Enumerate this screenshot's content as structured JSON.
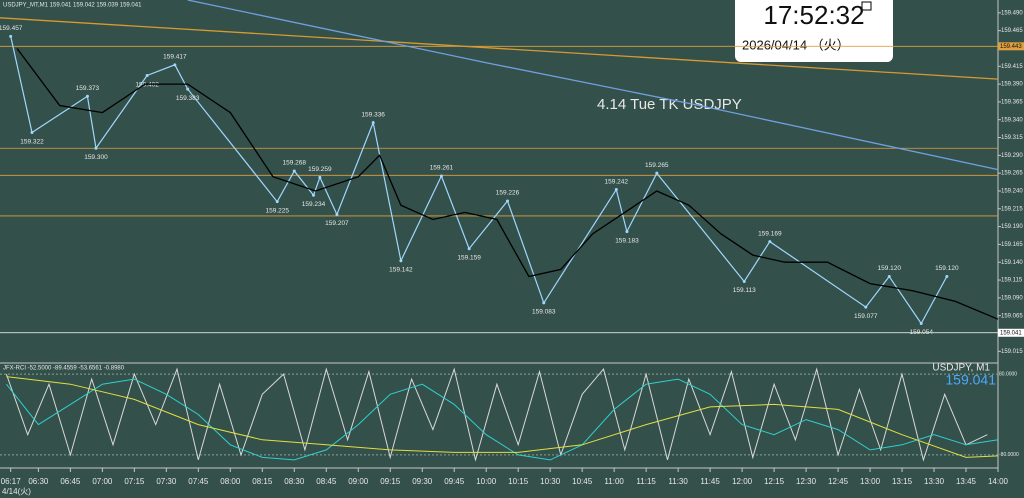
{
  "chart_data": {
    "type": "line",
    "header": "USDJPY_MT,M1  159.041 159.042 159.039 159.041",
    "annotation": "4.14 Tue TK USDJPY",
    "clock": {
      "time": "17:52:32",
      "date": "2026/04/14 （火）"
    },
    "date_label": "4/14(火)",
    "xlim": [
      372,
      840
    ],
    "xticks": [
      {
        "value": 377,
        "label": "06:17"
      },
      {
        "value": 390,
        "label": "06:30"
      },
      {
        "value": 405,
        "label": "06:45"
      },
      {
        "value": 420,
        "label": "07:00"
      },
      {
        "value": 435,
        "label": "07:15"
      },
      {
        "value": 450,
        "label": "07:30"
      },
      {
        "value": 465,
        "label": "07:45"
      },
      {
        "value": 480,
        "label": "08:00"
      },
      {
        "value": 495,
        "label": "08:15"
      },
      {
        "value": 510,
        "label": "08:30"
      },
      {
        "value": 525,
        "label": "08:45"
      },
      {
        "value": 540,
        "label": "09:00"
      },
      {
        "value": 555,
        "label": "09:15"
      },
      {
        "value": 570,
        "label": "09:30"
      },
      {
        "value": 585,
        "label": "09:45"
      },
      {
        "value": 600,
        "label": "10:00"
      },
      {
        "value": 615,
        "label": "10:15"
      },
      {
        "value": 630,
        "label": "10:30"
      },
      {
        "value": 645,
        "label": "10:45"
      },
      {
        "value": 660,
        "label": "11:00"
      },
      {
        "value": 675,
        "label": "11:15"
      },
      {
        "value": 690,
        "label": "11:30"
      },
      {
        "value": 705,
        "label": "11:45"
      },
      {
        "value": 720,
        "label": "12:00"
      },
      {
        "value": 735,
        "label": "12:15"
      },
      {
        "value": 750,
        "label": "12:30"
      },
      {
        "value": 765,
        "label": "12:45"
      },
      {
        "value": 780,
        "label": "13:00"
      },
      {
        "value": 795,
        "label": "13:15"
      },
      {
        "value": 810,
        "label": "13:30"
      },
      {
        "value": 825,
        "label": "13:45"
      },
      {
        "value": 840,
        "label": "14:00"
      }
    ],
    "ylim": [
      159.0,
      159.508
    ],
    "yticks": [
      {
        "value": 159.49,
        "label": "159.490"
      },
      159.465,
      159.415,
      {
        "value": 159.39,
        "label": "159.390"
      },
      159.365,
      {
        "value": 159.34,
        "label": "159.340"
      },
      159.315,
      {
        "value": 159.29,
        "label": "159.290"
      },
      159.265,
      {
        "value": 159.24,
        "label": "159.240"
      },
      159.215,
      {
        "value": 159.19,
        "label": "159.190"
      },
      159.165,
      {
        "value": 159.14,
        "label": "159.140"
      },
      159.115,
      {
        "value": 159.09,
        "label": "159.090"
      },
      159.065,
      159.015
    ],
    "levels": {
      "values": [
        159.443,
        159.041
      ],
      "colors": [
        "#e0a040",
        "#ffffff"
      ]
    },
    "lines": [
      {
        "color": "#e0a040",
        "values": [
          159.3,
          159.262,
          159.205
        ]
      }
    ],
    "series": [
      {
        "name": "price",
        "color": "#9fd8ff",
        "x": [
          377,
          387,
          413,
          417,
          441,
          454,
          460,
          502,
          510,
          519,
          522,
          530,
          547,
          560,
          579,
          592,
          610,
          627,
          661,
          666,
          680,
          721,
          733,
          778,
          789,
          804,
          816
        ],
        "values": [
          159.457,
          159.322,
          159.373,
          159.3,
          159.402,
          159.417,
          159.383,
          159.225,
          159.268,
          159.234,
          159.259,
          159.207,
          159.336,
          159.142,
          159.261,
          159.159,
          159.226,
          159.083,
          159.242,
          159.183,
          159.265,
          159.113,
          159.169,
          159.077,
          159.12,
          159.054,
          159.12
        ],
        "value_labels": [
          "159.457",
          "159.322",
          "159.373",
          "159.300",
          "159.402",
          "159.417",
          "159.383",
          "159.225",
          "159.268",
          "159.234",
          "159.259",
          "159.207",
          "159.336",
          "159.142",
          "159.261",
          "159.159",
          "159.226",
          "159.083",
          "159.242",
          "159.183",
          "159.265",
          "159.113",
          "159.169",
          "159.077",
          "159.120",
          "159.054",
          "159.120"
        ]
      },
      {
        "name": "orange",
        "color": "#d89a30",
        "x": [
          372,
          840
        ],
        "values": [
          159.483,
          159.397
        ]
      },
      {
        "name": "blue",
        "color": "#6fa0e0",
        "x": [
          460,
          600,
          700,
          840
        ],
        "values": [
          159.508,
          159.42,
          159.36,
          159.27
        ]
      },
      {
        "name": "black",
        "color": "#000000",
        "x": [
          380,
          400,
          420,
          440,
          460,
          480,
          500,
          520,
          540,
          550,
          560,
          575,
          590,
          605,
          620,
          635,
          650,
          665,
          680,
          695,
          710,
          725,
          740,
          760,
          780,
          800,
          820,
          840
        ],
        "values": [
          159.44,
          159.36,
          159.35,
          159.39,
          159.39,
          159.35,
          159.26,
          159.24,
          159.26,
          159.29,
          159.22,
          159.2,
          159.21,
          159.2,
          159.12,
          159.13,
          159.18,
          159.21,
          159.24,
          159.22,
          159.18,
          159.15,
          159.14,
          159.14,
          159.11,
          159.1,
          159.085,
          159.06
        ]
      }
    ],
    "current": {
      "label": "USDJPY, M1",
      "value": 159.041
    },
    "sub": {
      "header": "JFX-RCI -52.5000 -89.4559 -53.6561 -0.8980",
      "ylim": [
        -100,
        100
      ],
      "yticks": [
        {
          "value": 80,
          "label": "80.0000"
        },
        {
          "value": -80,
          "label": "-80.0000"
        }
      ],
      "series": [
        {
          "name": "white",
          "color": "#d8d8d8",
          "x": [
            375,
            385,
            395,
            405,
            415,
            425,
            435,
            445,
            455,
            465,
            475,
            485,
            495,
            505,
            515,
            525,
            535,
            545,
            555,
            565,
            575,
            585,
            595,
            605,
            615,
            625,
            635,
            645,
            655,
            665,
            675,
            685,
            695,
            705,
            715,
            725,
            735,
            745,
            755,
            765,
            775,
            785,
            795,
            805,
            815,
            825,
            835
          ],
          "values": [
            80,
            -40,
            60,
            -80,
            70,
            -60,
            80,
            -20,
            90,
            -90,
            60,
            -80,
            40,
            80,
            -70,
            90,
            -50,
            85,
            -85,
            70,
            -30,
            90,
            -90,
            60,
            -60,
            85,
            -80,
            40,
            90,
            -70,
            80,
            -90,
            70,
            -40,
            85,
            -85,
            60,
            -50,
            90,
            -80,
            50,
            -70,
            80,
            -90,
            40,
            -60,
            -40
          ]
        },
        {
          "name": "cyan",
          "color": "#30d0d0",
          "x": [
            375,
            390,
            405,
            420,
            435,
            450,
            465,
            480,
            495,
            510,
            525,
            540,
            555,
            570,
            585,
            600,
            615,
            630,
            645,
            660,
            675,
            690,
            705,
            720,
            735,
            750,
            765,
            780,
            795,
            810,
            825,
            840
          ],
          "values": [
            60,
            -20,
            20,
            60,
            70,
            40,
            0,
            -60,
            -85,
            -90,
            -70,
            -20,
            40,
            60,
            20,
            -40,
            -80,
            -90,
            -60,
            10,
            60,
            70,
            40,
            -20,
            -40,
            -10,
            -30,
            -70,
            -60,
            -40,
            -60,
            -50
          ]
        },
        {
          "name": "yellow",
          "color": "#e0e040",
          "x": [
            375,
            405,
            435,
            465,
            495,
            525,
            555,
            585,
            615,
            645,
            675,
            705,
            735,
            765,
            795,
            825,
            840
          ],
          "values": [
            75,
            60,
            30,
            -20,
            -50,
            -60,
            -70,
            -75,
            -75,
            -60,
            -20,
            15,
            20,
            10,
            -40,
            -85,
            -82
          ]
        }
      ]
    }
  }
}
